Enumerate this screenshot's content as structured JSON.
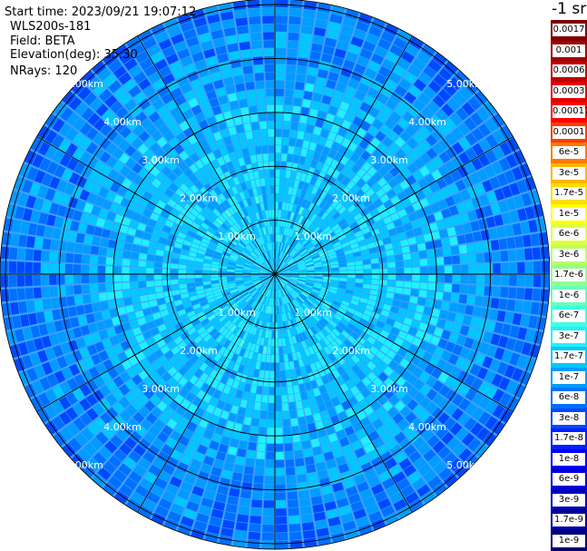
{
  "header": {
    "start_time": "Start time: 2023/09/21 19:07:12",
    "device": "WLS200s-181",
    "field": "Field: BETA",
    "elevation": "Elevation(deg): 35.30",
    "nrays": "NRays: 120"
  },
  "chart_data": {
    "type": "heatmap",
    "projection": "polar (PPI scan)",
    "field": "BETA",
    "n_rays": 120,
    "elevation_deg": 35.3,
    "range_rings_km": [
      1,
      2,
      3,
      4,
      5
    ],
    "ring_labels": [
      "1.00km",
      "2.00km",
      "3.00km",
      "4.00km",
      "5.00km"
    ],
    "radial_profile": [
      {
        "range_km": 0.0,
        "value": 3e-07
      },
      {
        "range_km": 1.0,
        "value": 3e-07
      },
      {
        "range_km": 2.0,
        "value": 2.5e-07
      },
      {
        "range_km": 3.0,
        "value": 2e-07
      },
      {
        "range_km": 3.5,
        "value": 1.5e-07
      },
      {
        "range_km": 4.0,
        "value": 1.2e-07
      },
      {
        "range_km": 4.5,
        "value": 9e-08
      },
      {
        "range_km": 5.0,
        "value": 7e-08
      },
      {
        "range_km": 5.3,
        "value": 6e-08
      }
    ],
    "colorbar": {
      "unit": "-1 sr",
      "ticks": [
        "0.0017",
        "0.001",
        "0.0006",
        "0.0003",
        "0.00017",
        "0.0001",
        "6e-5",
        "3e-5",
        "1.7e-5",
        "1e-5",
        "6e-6",
        "3e-6",
        "1.7e-6",
        "1e-6",
        "6e-7",
        "3e-7",
        "1.7e-7",
        "1e-7",
        "6e-8",
        "3e-8",
        "1.7e-8",
        "1e-8",
        "6e-9",
        "3e-9",
        "1.7e-9",
        "1e-9"
      ],
      "colors": [
        "#800000",
        "#a00000",
        "#c00000",
        "#e00000",
        "#ff0000",
        "#ff3c00",
        "#ff7800",
        "#ffb400",
        "#ffdc00",
        "#ffff00",
        "#e0ff40",
        "#b8ff68",
        "#90ff90",
        "#68ffb8",
        "#40ffe0",
        "#20f0ff",
        "#00c8ff",
        "#009cff",
        "#0070ff",
        "#0048ff",
        "#0020ff",
        "#0000f8",
        "#0000d8",
        "#0000b8",
        "#000098",
        "#000078"
      ]
    }
  }
}
